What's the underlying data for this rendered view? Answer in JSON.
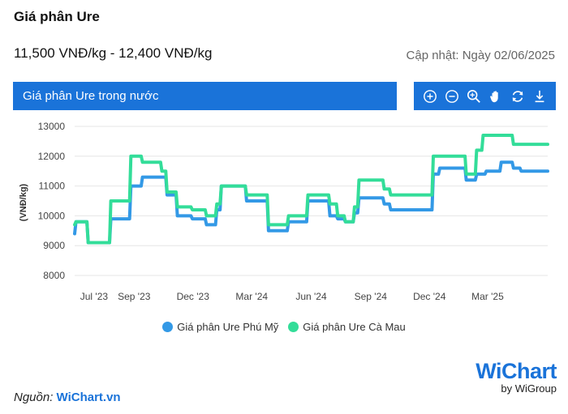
{
  "header": {
    "title": "Giá phân Ure",
    "price_range": "11,500 VNĐ/kg - 12,400 VNĐ/kg",
    "updated": "Cập nhật: Ngày 02/06/2025"
  },
  "chart_header": {
    "title": "Giá phân Ure trong nước"
  },
  "toolbar": {
    "icons": [
      "zoom-in-icon",
      "zoom-out-icon",
      "magnifier-icon",
      "pan-hand-icon",
      "reset-icon",
      "download-icon"
    ]
  },
  "colors": {
    "accent": "#1a73d9",
    "series1": "#3399e6",
    "series2": "#33dd99"
  },
  "footer": {
    "source_label": "Nguồn:",
    "source_link": "WiChart.vn",
    "logo_text": "WiChart",
    "logo_sub": "by WiGroup"
  },
  "chart_data": {
    "type": "line",
    "ylabel": "(VNĐ/kg)",
    "xlabel": "",
    "ylim": [
      8000,
      13000
    ],
    "yticks": [
      8000,
      9000,
      10000,
      11000,
      12000,
      13000
    ],
    "xticks": [
      {
        "label": "Jul '23",
        "date": "2023-07-01"
      },
      {
        "label": "Sep '23",
        "date": "2023-09-01"
      },
      {
        "label": "Dec '23",
        "date": "2023-12-01"
      },
      {
        "label": "Mar '24",
        "date": "2024-03-01"
      },
      {
        "label": "Jun '24",
        "date": "2024-06-01"
      },
      {
        "label": "Sep '24",
        "date": "2024-09-01"
      },
      {
        "label": "Dec '24",
        "date": "2024-12-01"
      },
      {
        "label": "Mar '25",
        "date": "2025-03-01"
      }
    ],
    "xrange": [
      "2023-06-01",
      "2025-06-02"
    ],
    "grid": true,
    "legend": "bottom",
    "series": [
      {
        "name": "Giá phân Ure Phú Mỹ",
        "color": "#3399e6",
        "points": [
          [
            "2023-06-01",
            9400
          ],
          [
            "2023-06-03",
            9800
          ],
          [
            "2023-06-20",
            9800
          ],
          [
            "2023-06-22",
            9100
          ],
          [
            "2023-07-25",
            9100
          ],
          [
            "2023-07-27",
            9900
          ],
          [
            "2023-08-25",
            9900
          ],
          [
            "2023-08-27",
            11000
          ],
          [
            "2023-09-12",
            11000
          ],
          [
            "2023-09-14",
            11300
          ],
          [
            "2023-10-20",
            11300
          ],
          [
            "2023-10-22",
            10700
          ],
          [
            "2023-11-05",
            10700
          ],
          [
            "2023-11-07",
            10000
          ],
          [
            "2023-11-28",
            10000
          ],
          [
            "2023-11-30",
            9900
          ],
          [
            "2023-12-20",
            9900
          ],
          [
            "2023-12-22",
            9700
          ],
          [
            "2024-01-05",
            9700
          ],
          [
            "2024-01-07",
            10200
          ],
          [
            "2024-01-12",
            10200
          ],
          [
            "2024-01-14",
            11000
          ],
          [
            "2024-02-20",
            11000
          ],
          [
            "2024-02-22",
            10500
          ],
          [
            "2024-03-25",
            10500
          ],
          [
            "2024-03-27",
            9500
          ],
          [
            "2024-04-25",
            9500
          ],
          [
            "2024-04-27",
            9800
          ],
          [
            "2024-05-25",
            9800
          ],
          [
            "2024-05-27",
            10500
          ],
          [
            "2024-06-28",
            10500
          ],
          [
            "2024-06-30",
            10000
          ],
          [
            "2024-07-10",
            10000
          ],
          [
            "2024-07-12",
            9900
          ],
          [
            "2024-07-22",
            9900
          ],
          [
            "2024-07-24",
            9800
          ],
          [
            "2024-08-05",
            9800
          ],
          [
            "2024-08-07",
            10100
          ],
          [
            "2024-08-12",
            10100
          ],
          [
            "2024-08-14",
            10600
          ],
          [
            "2024-09-20",
            10600
          ],
          [
            "2024-09-22",
            10400
          ],
          [
            "2024-09-30",
            10400
          ],
          [
            "2024-10-02",
            10200
          ],
          [
            "2024-12-05",
            10200
          ],
          [
            "2024-12-07",
            11400
          ],
          [
            "2024-12-15",
            11400
          ],
          [
            "2024-12-17",
            11600
          ],
          [
            "2025-01-25",
            11600
          ],
          [
            "2025-01-27",
            11200
          ],
          [
            "2025-02-10",
            11200
          ],
          [
            "2025-02-12",
            11400
          ],
          [
            "2025-02-25",
            11400
          ],
          [
            "2025-02-27",
            11500
          ],
          [
            "2025-03-20",
            11500
          ],
          [
            "2025-03-22",
            11800
          ],
          [
            "2025-04-08",
            11800
          ],
          [
            "2025-04-10",
            11600
          ],
          [
            "2025-04-20",
            11600
          ],
          [
            "2025-04-22",
            11500
          ],
          [
            "2025-06-02",
            11500
          ]
        ]
      },
      {
        "name": "Giá phân Ure Cà Mau",
        "color": "#33dd99",
        "points": [
          [
            "2023-06-01",
            9700
          ],
          [
            "2023-06-03",
            9800
          ],
          [
            "2023-06-20",
            9800
          ],
          [
            "2023-06-22",
            9100
          ],
          [
            "2023-07-25",
            9100
          ],
          [
            "2023-07-27",
            10500
          ],
          [
            "2023-08-25",
            10500
          ],
          [
            "2023-08-27",
            12000
          ],
          [
            "2023-09-12",
            12000
          ],
          [
            "2023-09-14",
            11800
          ],
          [
            "2023-10-12",
            11800
          ],
          [
            "2023-10-14",
            11500
          ],
          [
            "2023-10-20",
            11500
          ],
          [
            "2023-10-22",
            10800
          ],
          [
            "2023-11-05",
            10800
          ],
          [
            "2023-11-07",
            10300
          ],
          [
            "2023-11-28",
            10300
          ],
          [
            "2023-11-30",
            10200
          ],
          [
            "2023-12-20",
            10200
          ],
          [
            "2023-12-22",
            10000
          ],
          [
            "2024-01-05",
            10000
          ],
          [
            "2024-01-07",
            10400
          ],
          [
            "2024-01-12",
            10400
          ],
          [
            "2024-01-14",
            11000
          ],
          [
            "2024-02-20",
            11000
          ],
          [
            "2024-02-22",
            10700
          ],
          [
            "2024-03-25",
            10700
          ],
          [
            "2024-03-27",
            9700
          ],
          [
            "2024-04-25",
            9700
          ],
          [
            "2024-04-27",
            10000
          ],
          [
            "2024-05-25",
            10000
          ],
          [
            "2024-05-27",
            10700
          ],
          [
            "2024-06-28",
            10700
          ],
          [
            "2024-06-30",
            10400
          ],
          [
            "2024-07-10",
            10400
          ],
          [
            "2024-07-12",
            10000
          ],
          [
            "2024-07-22",
            10000
          ],
          [
            "2024-07-24",
            9800
          ],
          [
            "2024-08-05",
            9800
          ],
          [
            "2024-08-07",
            10300
          ],
          [
            "2024-08-12",
            10300
          ],
          [
            "2024-08-14",
            11200
          ],
          [
            "2024-09-20",
            11200
          ],
          [
            "2024-09-22",
            10900
          ],
          [
            "2024-09-30",
            10900
          ],
          [
            "2024-10-02",
            10700
          ],
          [
            "2024-12-05",
            10700
          ],
          [
            "2024-12-07",
            12000
          ],
          [
            "2025-01-25",
            12000
          ],
          [
            "2025-01-27",
            11400
          ],
          [
            "2025-02-10",
            11400
          ],
          [
            "2025-02-12",
            12200
          ],
          [
            "2025-02-20",
            12200
          ],
          [
            "2025-02-22",
            12700
          ],
          [
            "2025-04-08",
            12700
          ],
          [
            "2025-04-10",
            12400
          ],
          [
            "2025-06-02",
            12400
          ]
        ]
      }
    ]
  }
}
